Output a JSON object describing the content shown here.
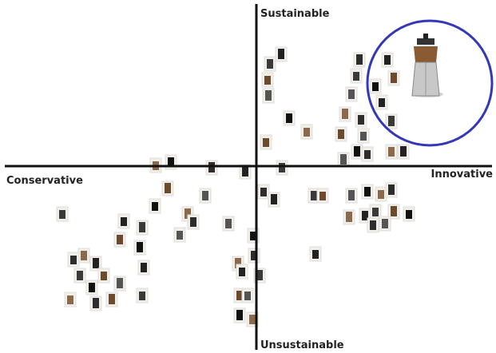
{
  "axes": {
    "top": "Sustainable",
    "bottom": "Unsustainable",
    "left": "Conservative",
    "right": "Innovative"
  }
}
